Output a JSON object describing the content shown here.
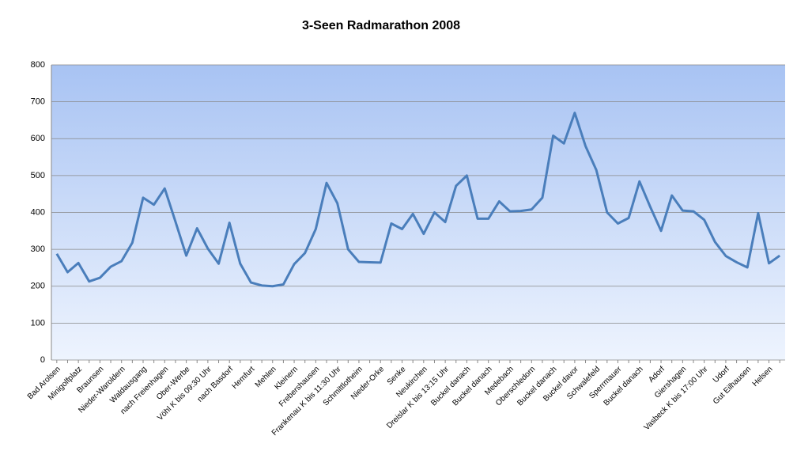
{
  "chart_data": {
    "type": "line",
    "title": "3-Seen Radmarathon 2008",
    "categories": [
      "Bad Arolsen",
      null,
      "Minigolfplatz",
      null,
      "Braunsen",
      null,
      "Nieder-Waroldern",
      null,
      "Waldausgang",
      null,
      "nach Freienhagen",
      null,
      "Ober-Werbe",
      null,
      "Vöhl K bis 09:30 Uhr",
      null,
      "nach Basdorf",
      null,
      "Hemfurt",
      null,
      "Mehlen",
      null,
      "Kleinern",
      null,
      "Frebershausen",
      null,
      "Frankenau K bis 11:30 Uhr",
      null,
      "Schmittlotheim",
      null,
      "Nieder-Orke",
      null,
      "Senke",
      null,
      "Neukirchen",
      null,
      "Dreislar K bis 13:15 Uhr",
      null,
      "Buckel danach",
      null,
      "Buckel danach",
      null,
      "Medebach",
      null,
      "Oberschledorn",
      null,
      "Buckel danach",
      null,
      "Buckel davor",
      null,
      "Schwalefeld",
      null,
      "Sperrmauer",
      null,
      "Buckel danach",
      null,
      "Adorf",
      null,
      "Giershagen",
      null,
      "Vasbeck K bis 17:00 Uhr",
      null,
      "Udorf",
      null,
      "Gut Eilhausen",
      null,
      "Helsen",
      null
    ],
    "values": [
      288,
      238,
      263,
      213,
      223,
      253,
      268,
      318,
      440,
      421,
      465,
      375,
      283,
      357,
      302,
      261,
      372,
      261,
      210,
      202,
      200,
      205,
      260,
      290,
      355,
      480,
      425,
      300,
      266,
      265,
      264,
      370,
      355,
      396,
      342,
      400,
      374,
      472,
      500,
      383,
      383,
      430,
      403,
      404,
      408,
      440,
      608,
      587,
      670,
      580,
      515,
      400,
      370,
      385,
      484,
      415,
      350,
      446,
      405,
      403,
      380,
      320,
      282,
      265,
      251,
      398,
      262,
      283
    ],
    "color": "#4a7ebb",
    "ylim": [
      0,
      800
    ],
    "yticks": [
      0,
      100,
      200,
      300,
      400,
      500,
      600,
      700,
      800
    ],
    "grid": true
  }
}
